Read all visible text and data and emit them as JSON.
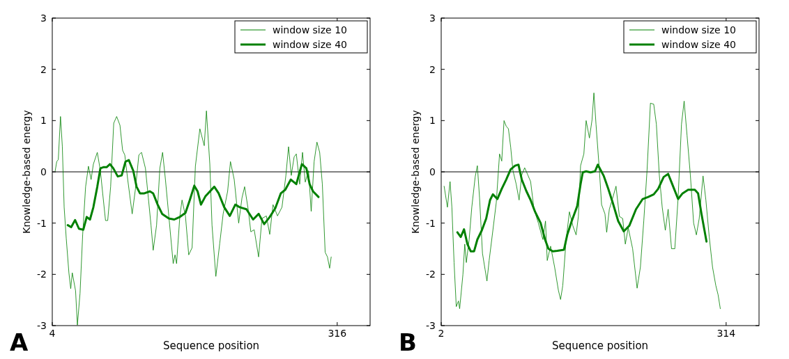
{
  "chart_data": [
    {
      "type": "line",
      "xlabel": "Sequence position",
      "ylabel": "Knowledge-based energy",
      "xlim": [
        4,
        352
      ],
      "ylim": [
        -3,
        3
      ],
      "xticks": [
        4,
        316
      ],
      "yticks": [
        -3,
        -2,
        -1,
        0,
        1,
        2,
        3
      ],
      "grid": false,
      "legend": "top right",
      "annotations": [
        "A"
      ],
      "ref_lines": [
        {
          "axis": "y",
          "value": 0,
          "color": "#000000"
        }
      ],
      "series": [
        {
          "name": "window size 10",
          "color": "#008000",
          "x": [
            7.2,
            8.9,
            10.6,
            13,
            15,
            17,
            19.3,
            22.2,
            24.2,
            25.9,
            29.5,
            31.5,
            34.4,
            37.3,
            40.5,
            43.6,
            46.5,
            49,
            53.3,
            56.7,
            59.2,
            62.3,
            64.7,
            67.9,
            71.3,
            74.5,
            78.1,
            81,
            83.4,
            86.6,
            91.5,
            95.1,
            98.8,
            101.7,
            106,
            109.2,
            112.1,
            114.5,
            118.2,
            121.8,
            124.8,
            127.9,
            131.6,
            136.4,
            138.4,
            140.1,
            143.7,
            146.1,
            149.8,
            153.4,
            157.1,
            160.7,
            165.6,
            170.4,
            172.8,
            176.5,
            178.9,
            183.1,
            187.4,
            191.1,
            196,
            199.1,
            203.2,
            208.1,
            211.7,
            214.6,
            218.5,
            221.4,
            225.1,
            229.9,
            233.6,
            238.4,
            242.1,
            245.7,
            250.6,
            255.5,
            259.8,
            262.7,
            265.7,
            268.8,
            271.2,
            274.9,
            278,
            281,
            284.6,
            287.5,
            290.7,
            293.8,
            296.8,
            299.7,
            302.8,
            305.3,
            307.7,
            309.4
          ],
          "values": [
            0.02,
            0.2,
            0.24,
            1.08,
            0.5,
            -0.69,
            -1.3,
            -1.97,
            -2.28,
            -1.97,
            -2.32,
            -2.99,
            -2.37,
            -1.22,
            -0.29,
            0.11,
            -0.15,
            0.15,
            0.38,
            0.02,
            -0.42,
            -0.95,
            -0.95,
            -0.29,
            0.95,
            1.08,
            0.91,
            0.42,
            0.33,
            -0.15,
            -0.82,
            -0.33,
            0.33,
            0.38,
            0.07,
            -0.51,
            -1.04,
            -1.53,
            -1.04,
            0.07,
            0.38,
            -0.15,
            -0.86,
            -1.79,
            -1.62,
            -1.79,
            -0.86,
            -0.55,
            -0.86,
            -1.62,
            -1.48,
            0.11,
            0.84,
            0.51,
            1.19,
            0.15,
            -1.04,
            -2.04,
            -1.39,
            -0.82,
            -0.38,
            0.2,
            -0.15,
            -1,
            -0.51,
            -0.29,
            -0.73,
            -1.17,
            -1.13,
            -1.66,
            -0.91,
            -0.86,
            -1.22,
            -0.64,
            -0.86,
            -0.69,
            -0.07,
            0.49,
            -0.07,
            0.29,
            0.35,
            -0.24,
            0.38,
            -0.2,
            0.02,
            -0.77,
            0.2,
            0.58,
            0.38,
            -0.24,
            -1.57,
            -1.66,
            -1.88,
            -1.66
          ]
        },
        {
          "name": "window size 40",
          "color": "#008000",
          "x": [
            21,
            24.7,
            29,
            33.2,
            38,
            41.7,
            45.3,
            49,
            53.3,
            56.7,
            59.9,
            63.5,
            67.2,
            70.8,
            75.7,
            80,
            84.2,
            87.8,
            92.7,
            96.3,
            100,
            104.8,
            110.9,
            114.5,
            119.4,
            124.3,
            131.6,
            137.6,
            143.7,
            149.8,
            154.6,
            159.5,
            163.1,
            166.8,
            171.6,
            181.4,
            186.2,
            192.3,
            198.4,
            204.4,
            209.3,
            216.6,
            223.9,
            230,
            236,
            242.1,
            248.2,
            254.2,
            259.1,
            265.2,
            271.2,
            277.3,
            282.2,
            285.8,
            289.5,
            295.5
          ],
          "values": [
            -1.04,
            -1.08,
            -0.94,
            -1.11,
            -1.13,
            -0.88,
            -0.93,
            -0.69,
            -0.29,
            0.07,
            0.09,
            0.09,
            0.15,
            0.07,
            -0.09,
            -0.07,
            0.2,
            0.23,
            0.02,
            -0.29,
            -0.42,
            -0.42,
            -0.38,
            -0.42,
            -0.64,
            -0.82,
            -0.91,
            -0.93,
            -0.88,
            -0.8,
            -0.55,
            -0.27,
            -0.38,
            -0.64,
            -0.48,
            -0.29,
            -0.42,
            -0.69,
            -0.86,
            -0.64,
            -0.69,
            -0.73,
            -0.93,
            -0.82,
            -1.02,
            -0.88,
            -0.71,
            -0.42,
            -0.35,
            -0.15,
            -0.24,
            0.15,
            0.07,
            -0.24,
            -0.38,
            -0.49
          ]
        }
      ]
    },
    {
      "type": "line",
      "xlabel": "Sequence position",
      "ylabel": "Knowledge-based energy",
      "xlim": [
        2,
        350
      ],
      "ylim": [
        -3,
        3
      ],
      "xticks": [
        2,
        314
      ],
      "yticks": [
        -3,
        -2,
        -1,
        0,
        1,
        2,
        3
      ],
      "grid": false,
      "legend": "top right",
      "annotations": [
        "B"
      ],
      "ref_lines": [
        {
          "axis": "y",
          "value": 0,
          "color": "#000000"
        }
      ],
      "series": [
        {
          "name": "window size 10",
          "color": "#008000",
          "x": [
            5.2,
            8.8,
            11.7,
            13.7,
            16.1,
            18.5,
            20.9,
            22.2,
            25.8,
            27.8,
            29.5,
            32.6,
            35.5,
            39.2,
            41.6,
            44,
            47.2,
            50.1,
            52.1,
            54.5,
            58.6,
            62.3,
            65.9,
            68.3,
            70.8,
            73.2,
            75.6,
            78.1,
            80.5,
            84.1,
            87.3,
            90.2,
            93.4,
            96.8,
            99.9,
            103.6,
            108.4,
            113.3,
            116.2,
            118.1,
            121.8,
            126.2,
            130.3,
            132.7,
            135.1,
            138.8,
            142.4,
            146.1,
            149.7,
            152.2,
            154.6,
            158.2,
            160.7,
            164.3,
            167.2,
            169.2,
            171.5,
            175.2,
            177.6,
            181.3,
            183.2,
            186.1,
            189.8,
            193.4,
            197.1,
            200.7,
            203.6,
            206.8,
            211.6,
            216.5,
            220.1,
            223.8,
            227.4,
            231.1,
            234.7,
            237.6,
            240.8,
            244,
            247.4,
            250.5,
            254.2,
            257.8,
            261.4,
            265.1,
            268,
            271.2,
            274.8,
            278.4,
            281.4,
            284.5,
            288.7,
            291.8,
            295.5,
            299.1,
            302.7,
            305.2,
            307.6
          ],
          "values": [
            -0.28,
            -0.69,
            -0.19,
            -0.69,
            -1.77,
            -2.63,
            -2.52,
            -2.67,
            -2,
            -1.41,
            -1.77,
            -1.32,
            -0.69,
            -0.1,
            0.12,
            -0.51,
            -1.59,
            -1.91,
            -2.13,
            -1.73,
            -1.14,
            -0.6,
            0.35,
            0.21,
            1,
            0.89,
            0.84,
            0.48,
            0.03,
            -0.24,
            -0.55,
            -0.06,
            0.08,
            -0.06,
            -0.19,
            -0.73,
            -1,
            -1.32,
            -0.96,
            -1.73,
            -1.45,
            -1.86,
            -2.31,
            -2.49,
            -2.22,
            -1.32,
            -0.78,
            -1.05,
            -1.23,
            -0.87,
            0.12,
            0.35,
            1,
            0.66,
            1.02,
            1.54,
            0.93,
            0.03,
            -0.64,
            -0.82,
            -1.18,
            -0.73,
            -0.51,
            -0.28,
            -0.87,
            -0.91,
            -1.41,
            -1.09,
            -1.5,
            -2.27,
            -1.86,
            -0.96,
            0.03,
            1.34,
            1.32,
            0.93,
            -0.06,
            -0.69,
            -1.14,
            -0.73,
            -1.5,
            -1.5,
            -0.51,
            0.93,
            1.38,
            0.71,
            -0.06,
            -1,
            -1.23,
            -0.91,
            -0.08,
            -0.55,
            -1.27,
            -1.86,
            -2.22,
            -2.4,
            -2.67
          ]
        },
        {
          "name": "window size 40",
          "color": "#008000",
          "x": [
            19.7,
            23.4,
            27,
            30.7,
            34.3,
            38,
            41.6,
            46.5,
            51.3,
            55.5,
            58.6,
            63.5,
            68.3,
            73.2,
            78.1,
            82.9,
            86.6,
            90.2,
            95.1,
            99.9,
            104.8,
            110.9,
            115.7,
            119.4,
            124.2,
            129.1,
            136.4,
            140,
            144.9,
            150.9,
            154.6,
            157,
            160.7,
            165.5,
            170.4,
            173.5,
            180,
            184.9,
            189.8,
            195.8,
            201.9,
            208,
            215.3,
            222.6,
            228.6,
            234.7,
            239.6,
            245.6,
            250.5,
            255.4,
            261.4,
            266.3,
            272.4,
            279.7,
            283.3,
            287,
            292.5
          ],
          "values": [
            -1.18,
            -1.27,
            -1.12,
            -1.41,
            -1.55,
            -1.55,
            -1.32,
            -1.14,
            -0.91,
            -0.55,
            -0.44,
            -0.53,
            -0.33,
            -0.15,
            0.05,
            0.12,
            0.14,
            -0.15,
            -0.37,
            -0.55,
            -0.78,
            -1,
            -1.32,
            -1.5,
            -1.55,
            -1.54,
            -1.52,
            -1.23,
            -0.96,
            -0.67,
            -0.24,
            -0.01,
            0.01,
            -0.01,
            0.01,
            0.14,
            -0.08,
            -0.33,
            -0.6,
            -0.96,
            -1.16,
            -1.05,
            -0.73,
            -0.53,
            -0.49,
            -0.44,
            -0.33,
            -0.1,
            -0.04,
            -0.26,
            -0.53,
            -0.42,
            -0.35,
            -0.35,
            -0.42,
            -0.82,
            -1.36
          ]
        }
      ]
    }
  ]
}
